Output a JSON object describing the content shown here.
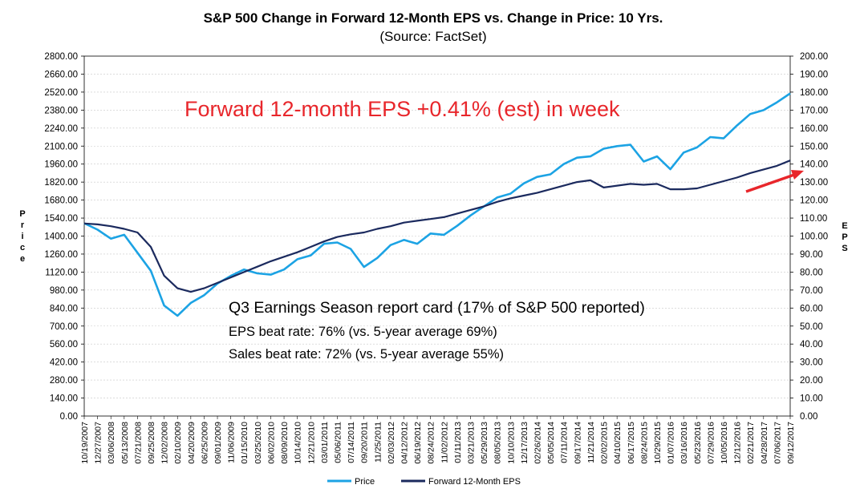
{
  "chart_data": {
    "type": "line",
    "title": "S&P 500 Change in Forward 12-Month EPS vs. Change in Price: 10 Yrs.",
    "subtitle": "(Source: FactSet)",
    "ylabel_left": "Price",
    "ylabel_right": "EPS",
    "ylim_left": [
      0,
      2800
    ],
    "ylim_right": [
      0,
      200
    ],
    "yticks_left": [
      "0.00",
      "140.00",
      "280.00",
      "420.00",
      "560.00",
      "700.00",
      "840.00",
      "980.00",
      "1120.00",
      "1260.00",
      "1400.00",
      "1540.00",
      "1680.00",
      "1820.00",
      "1960.00",
      "2100.00",
      "2240.00",
      "2380.00",
      "2520.00",
      "2660.00",
      "2800.00"
    ],
    "yticks_right": [
      "0.00",
      "10.00",
      "20.00",
      "30.00",
      "40.00",
      "50.00",
      "60.00",
      "70.00",
      "80.00",
      "90.00",
      "100.00",
      "110.00",
      "120.00",
      "130.00",
      "140.00",
      "150.00",
      "160.00",
      "170.00",
      "180.00",
      "190.00",
      "200.00"
    ],
    "x_dates": [
      "10/19/2007",
      "12/27/2007",
      "03/06/2008",
      "05/13/2008",
      "07/21/2008",
      "09/25/2008",
      "12/02/2008",
      "02/10/2009",
      "04/20/2009",
      "06/25/2009",
      "09/01/2009",
      "11/06/2009",
      "01/15/2010",
      "03/25/2010",
      "06/02/2010",
      "08/09/2010",
      "10/14/2010",
      "12/21/2010",
      "03/01/2011",
      "05/06/2011",
      "07/14/2011",
      "09/20/2011",
      "11/25/2011",
      "02/03/2012",
      "04/12/2012",
      "06/19/2012",
      "08/24/2012",
      "11/02/2012",
      "01/11/2013",
      "03/21/2013",
      "05/29/2013",
      "08/05/2013",
      "10/10/2013",
      "12/17/2013",
      "02/26/2014",
      "05/05/2014",
      "07/11/2014",
      "09/17/2014",
      "11/21/2014",
      "02/02/2015",
      "04/10/2015",
      "06/17/2015",
      "08/24/2015",
      "10/29/2015",
      "01/07/2016",
      "03/16/2016",
      "05/23/2016",
      "07/29/2016",
      "10/05/2016",
      "12/12/2016",
      "02/21/2017",
      "04/28/2017",
      "07/06/2017",
      "09/12/2017"
    ],
    "series": [
      {
        "name": "Price",
        "axis": "left",
        "color": "#1ca3e4",
        "values": [
          1500,
          1450,
          1380,
          1410,
          1270,
          1130,
          860,
          780,
          880,
          940,
          1030,
          1090,
          1140,
          1110,
          1100,
          1140,
          1220,
          1250,
          1340,
          1350,
          1300,
          1160,
          1230,
          1330,
          1370,
          1340,
          1420,
          1410,
          1480,
          1560,
          1630,
          1700,
          1730,
          1810,
          1860,
          1880,
          1960,
          2010,
          2020,
          2080,
          2100,
          2110,
          1980,
          2020,
          1920,
          2050,
          2090,
          2170,
          2160,
          2260,
          2350,
          2380,
          2440,
          2510
        ]
      },
      {
        "name": "Forward 12-Month EPS",
        "axis": "right",
        "color": "#1b2a5e",
        "values": [
          107,
          106.5,
          105.5,
          104,
          102,
          94,
          78,
          71,
          69,
          71,
          74,
          77,
          80,
          83,
          86,
          88.5,
          91,
          94,
          97,
          99.5,
          101,
          102,
          104,
          105.5,
          107.5,
          108.5,
          109.5,
          110.5,
          112.5,
          114.5,
          116.5,
          119,
          121,
          122.5,
          124,
          126,
          128,
          130,
          131,
          127,
          128,
          129,
          128.5,
          129,
          126,
          126,
          126.5,
          128.5,
          130.5,
          132.5,
          135,
          137,
          139,
          142
        ]
      }
    ],
    "legend": [
      "Price",
      "Forward 12-Month EPS"
    ],
    "legend_position": "bottom-center"
  },
  "annotations": {
    "headline": "Forward 12-month EPS +0.41% (est) in week",
    "report_title": "Q3 Earnings Season report card (17% of S&P 500 reported)",
    "eps_beat": "EPS beat rate: 76% (vs. 5-year average 69%)",
    "sales_beat": "Sales beat rate: 72% (vs. 5-year average 55%)",
    "arrow_color": "#e8262b"
  }
}
